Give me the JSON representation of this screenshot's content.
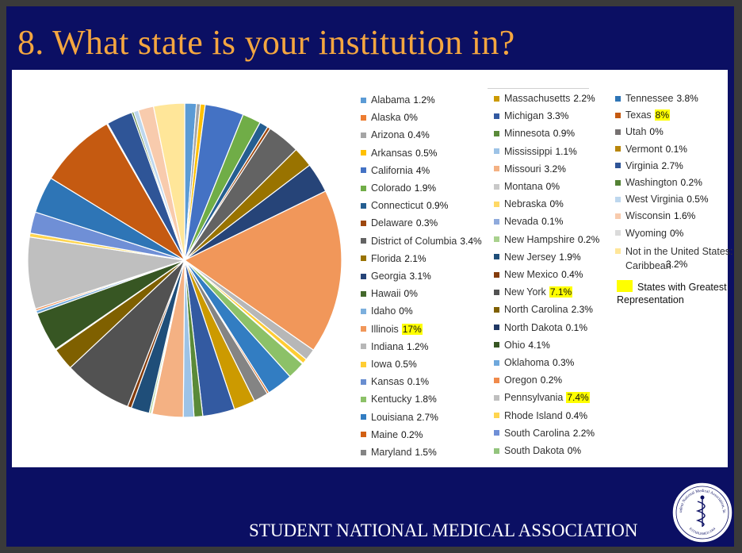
{
  "title": "8. What state is your institution in?",
  "footer": {
    "organization": "STUDENT  NATIONAL MEDICAL ASSOCIATION",
    "seal_top_text": "Student National Medical Association, Inc.",
    "seal_bottom_text": "ESTABLISHED 1964"
  },
  "highlight_legend": {
    "label": "States with Greatest Representation",
    "color": "#ffff00"
  },
  "chart_data": {
    "type": "pie",
    "title": "",
    "highlighted": [
      "Illinois",
      "Texas",
      "Pennsylvania",
      "New York"
    ],
    "slices": [
      {
        "name": "Alabama",
        "label": "1.2%",
        "value": 1.2,
        "color": "#5b9bd5"
      },
      {
        "name": "Alaska",
        "label": "0%",
        "value": 0,
        "color": "#ed7d31"
      },
      {
        "name": "Arizona",
        "label": "0.4%",
        "value": 0.4,
        "color": "#a5a5a5"
      },
      {
        "name": "Arkansas",
        "label": "0.5%",
        "value": 0.5,
        "color": "#ffc000"
      },
      {
        "name": "California",
        "label": "4%",
        "value": 4,
        "color": "#4472c4"
      },
      {
        "name": "Colorado",
        "label": "1.9%",
        "value": 1.9,
        "color": "#70ad47"
      },
      {
        "name": "Connecticut",
        "label": "0.9%",
        "value": 0.9,
        "color": "#255e91"
      },
      {
        "name": "Delaware",
        "label": "0.3%",
        "value": 0.3,
        "color": "#9e480e"
      },
      {
        "name": "District of Columbia",
        "label": "3.4%",
        "value": 3.4,
        "color": "#636363"
      },
      {
        "name": "Florida",
        "label": "2.1%",
        "value": 2.1,
        "color": "#997300"
      },
      {
        "name": "Georgia",
        "label": "3.1%",
        "value": 3.1,
        "color": "#264478"
      },
      {
        "name": "Hawaii",
        "label": "0%",
        "value": 0,
        "color": "#43682b"
      },
      {
        "name": "Idaho",
        "label": "0%",
        "value": 0,
        "color": "#7cafdd"
      },
      {
        "name": "Illinois",
        "label": "17%",
        "value": 17,
        "color": "#f1975a"
      },
      {
        "name": "Indiana",
        "label": "1.2%",
        "value": 1.2,
        "color": "#b7b7b7"
      },
      {
        "name": "Iowa",
        "label": "0.5%",
        "value": 0.5,
        "color": "#ffcd33"
      },
      {
        "name": "Kansas",
        "label": "0.1%",
        "value": 0.1,
        "color": "#698ed0"
      },
      {
        "name": "Kentucky",
        "label": "1.8%",
        "value": 1.8,
        "color": "#8cc168"
      },
      {
        "name": "Louisiana",
        "label": "2.7%",
        "value": 2.7,
        "color": "#327dc2"
      },
      {
        "name": "Maine",
        "label": "0.2%",
        "value": 0.2,
        "color": "#d26012"
      },
      {
        "name": "Maryland",
        "label": "1.5%",
        "value": 1.5,
        "color": "#848484"
      },
      {
        "name": "Massachusetts",
        "label": "2.2%",
        "value": 2.2,
        "color": "#cc9a00"
      },
      {
        "name": "Michigan",
        "label": "3.3%",
        "value": 3.3,
        "color": "#335aa1"
      },
      {
        "name": "Minnesota",
        "label": "0.9%",
        "value": 0.9,
        "color": "#5a8a39"
      },
      {
        "name": "Mississippi",
        "label": "1.1%",
        "value": 1.1,
        "color": "#9dc3e6"
      },
      {
        "name": "Missouri",
        "label": "3.2%",
        "value": 3.2,
        "color": "#f4b183"
      },
      {
        "name": "Montana",
        "label": "0%",
        "value": 0,
        "color": "#c9c9c9"
      },
      {
        "name": "Nebraska",
        "label": "0%",
        "value": 0,
        "color": "#ffd966"
      },
      {
        "name": "Nevada",
        "label": "0.1%",
        "value": 0.1,
        "color": "#8faadc"
      },
      {
        "name": "New Hampshire",
        "label": "0.2%",
        "value": 0.2,
        "color": "#a9d18e"
      },
      {
        "name": "New Jersey",
        "label": "1.9%",
        "value": 1.9,
        "color": "#1f4e79"
      },
      {
        "name": "New Mexico",
        "label": "0.4%",
        "value": 0.4,
        "color": "#843c0c"
      },
      {
        "name": "New York",
        "label": "7.1%",
        "value": 7.1,
        "color": "#525252"
      },
      {
        "name": "North Carolina",
        "label": "2.3%",
        "value": 2.3,
        "color": "#7f6000"
      },
      {
        "name": "North Dakota",
        "label": "0.1%",
        "value": 0.1,
        "color": "#203864"
      },
      {
        "name": "Ohio",
        "label": "4.1%",
        "value": 4.1,
        "color": "#375623"
      },
      {
        "name": "Oklahoma",
        "label": "0.3%",
        "value": 0.3,
        "color": "#6fa8dc"
      },
      {
        "name": "Oregon",
        "label": "0.2%",
        "value": 0.2,
        "color": "#f08a4b"
      },
      {
        "name": "Pennsylvania",
        "label": "7.4%",
        "value": 7.4,
        "color": "#bfbfbf"
      },
      {
        "name": "Rhode Island",
        "label": "0.4%",
        "value": 0.4,
        "color": "#ffd54f"
      },
      {
        "name": "South Carolina",
        "label": "2.2%",
        "value": 2.2,
        "color": "#6f8fd6"
      },
      {
        "name": "South Dakota",
        "label": "0%",
        "value": 0,
        "color": "#93c47d"
      },
      {
        "name": "Tennessee",
        "label": "3.8%",
        "value": 3.8,
        "color": "#2e75b6"
      },
      {
        "name": "Texas",
        "label": "8%",
        "value": 8,
        "color": "#c55a11"
      },
      {
        "name": "Utah",
        "label": "0%",
        "value": 0,
        "color": "#767171"
      },
      {
        "name": "Vermont",
        "label": "0.1%",
        "value": 0.1,
        "color": "#b8860b"
      },
      {
        "name": "Virginia",
        "label": "2.7%",
        "value": 2.7,
        "color": "#2f5597"
      },
      {
        "name": "Washington",
        "label": "0.2%",
        "value": 0.2,
        "color": "#548235"
      },
      {
        "name": "West Virginia",
        "label": "0.5%",
        "value": 0.5,
        "color": "#bdd7ee"
      },
      {
        "name": "Wisconsin",
        "label": "1.6%",
        "value": 1.6,
        "color": "#f8cbad"
      },
      {
        "name": "Wyoming",
        "label": "0%",
        "value": 0,
        "color": "#dbdbdb"
      },
      {
        "name": "Not in the United States: Caribbean",
        "label": "3.2%",
        "value": 3.2,
        "color": "#ffe699"
      }
    ]
  }
}
